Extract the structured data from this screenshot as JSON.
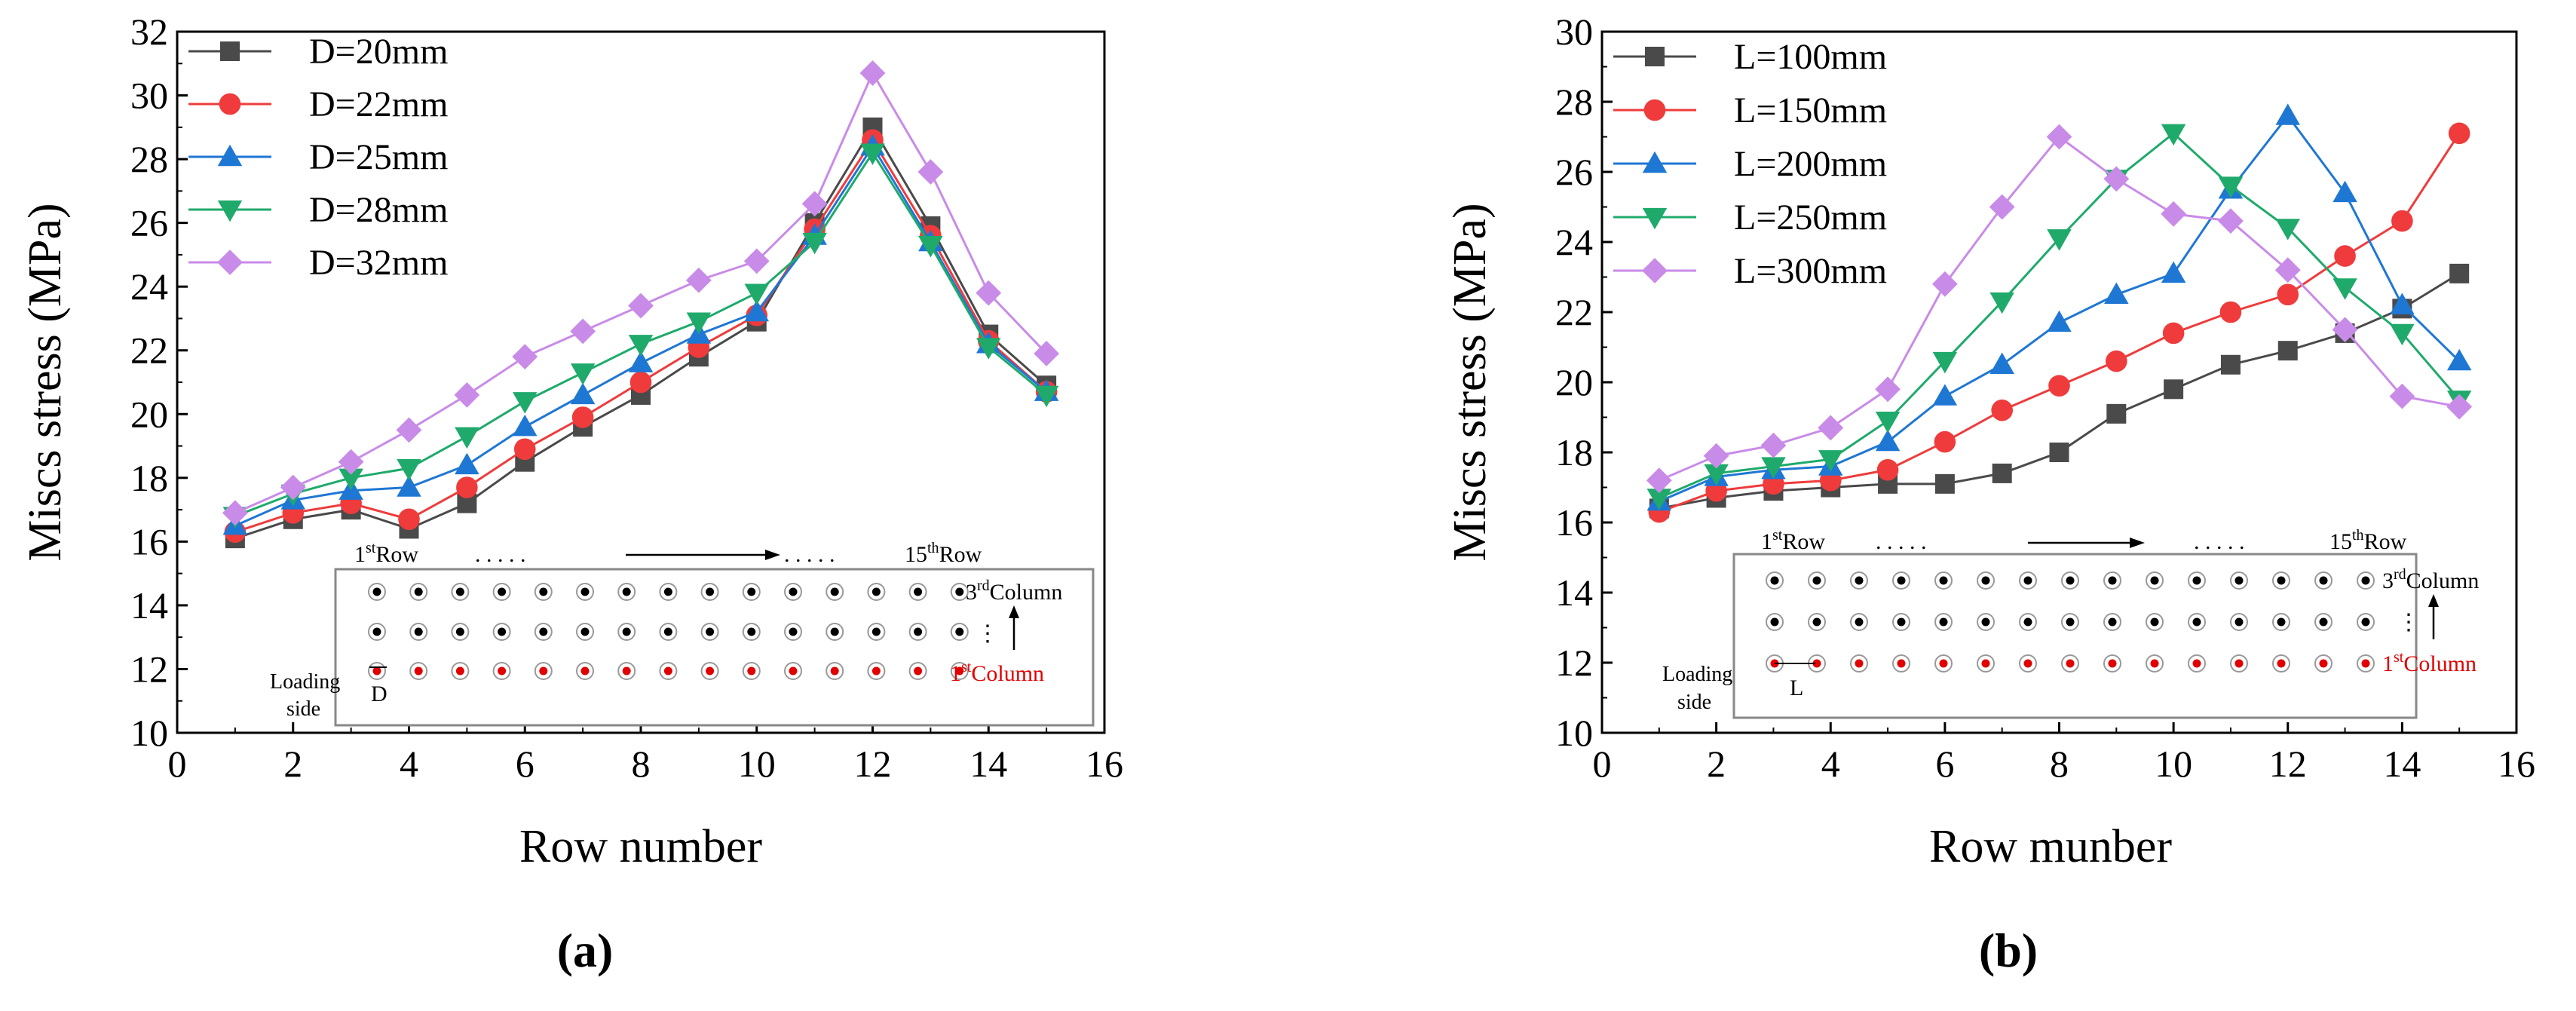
{
  "chart_data": [
    {
      "type": "line",
      "panel_label": "(a)",
      "xlabel": "Row number",
      "ylabel": "Miscs stress (MPa)",
      "xlim": [
        0,
        16
      ],
      "ylim": [
        10,
        32
      ],
      "xticks": [
        0,
        2,
        4,
        6,
        8,
        10,
        12,
        14,
        16
      ],
      "yticks": [
        10,
        12,
        14,
        16,
        18,
        20,
        22,
        24,
        26,
        28,
        30,
        32
      ],
      "x": [
        1,
        2,
        3,
        4,
        5,
        6,
        7,
        8,
        9,
        10,
        11,
        12,
        13,
        14,
        15
      ],
      "legend_position": "top-left",
      "series": [
        {
          "name": "D=20mm",
          "marker": "square",
          "color": "#4a4a4a",
          "values": [
            16.1,
            16.7,
            17.0,
            16.4,
            17.2,
            18.5,
            19.6,
            20.6,
            21.8,
            22.9,
            26.0,
            29.0,
            25.9,
            22.5,
            20.9
          ]
        },
        {
          "name": "D=22mm",
          "marker": "circle",
          "color": "#ef3b3b",
          "values": [
            16.3,
            16.9,
            17.2,
            16.7,
            17.7,
            18.9,
            19.9,
            21.0,
            22.1,
            23.1,
            25.8,
            28.6,
            25.6,
            22.3,
            20.7
          ]
        },
        {
          "name": "D=25mm",
          "marker": "triangle-up",
          "color": "#1f77d4",
          "values": [
            16.5,
            17.3,
            17.6,
            17.7,
            18.4,
            19.6,
            20.6,
            21.6,
            22.5,
            23.2,
            25.6,
            28.4,
            25.4,
            22.2,
            20.7
          ]
        },
        {
          "name": "D=28mm",
          "marker": "triangle-down",
          "color": "#1faa6b",
          "values": [
            16.8,
            17.5,
            18.0,
            18.3,
            19.3,
            20.4,
            21.3,
            22.2,
            22.9,
            23.8,
            25.4,
            28.2,
            25.3,
            22.1,
            20.6
          ]
        },
        {
          "name": "D=32mm",
          "marker": "diamond",
          "color": "#c98be8",
          "values": [
            16.9,
            17.7,
            18.5,
            19.5,
            20.6,
            21.8,
            22.6,
            23.4,
            24.2,
            24.8,
            26.6,
            30.7,
            27.6,
            23.8,
            21.9
          ]
        }
      ],
      "inset": {
        "first_row": "1",
        "first_row_sup": "st",
        "first_row_word": "Row",
        "last_row": "15",
        "last_row_sup": "th",
        "last_row_word": "Row",
        "dots": ". . . . .",
        "third_col": "3",
        "third_col_sup": "rd",
        "third_col_word": "Column",
        "first_col": "1",
        "first_col_sup": "st",
        "first_col_word": "Column",
        "loading_1": "Loading",
        "loading_2": "side",
        "dim_label": "D",
        "red_color": "#e00000"
      }
    },
    {
      "type": "line",
      "panel_label": "(b)",
      "xlabel": "Row munber",
      "ylabel": "Miscs stress (MPa)",
      "xlim": [
        0,
        16
      ],
      "ylim": [
        10,
        30
      ],
      "xticks": [
        0,
        2,
        4,
        6,
        8,
        10,
        12,
        14,
        16
      ],
      "yticks": [
        10,
        12,
        14,
        16,
        18,
        20,
        22,
        24,
        26,
        28,
        30
      ],
      "x": [
        1,
        2,
        3,
        4,
        5,
        6,
        7,
        8,
        9,
        10,
        11,
        12,
        13,
        14,
        15
      ],
      "legend_position": "top-left",
      "series": [
        {
          "name": "L=100mm",
          "marker": "square",
          "color": "#4a4a4a",
          "values": [
            16.4,
            16.7,
            16.9,
            17.0,
            17.1,
            17.1,
            17.4,
            18.0,
            19.1,
            19.8,
            20.5,
            20.9,
            21.4,
            22.1,
            23.1
          ]
        },
        {
          "name": "L=150mm",
          "marker": "circle",
          "color": "#ef3b3b",
          "values": [
            16.3,
            16.9,
            17.1,
            17.2,
            17.5,
            18.3,
            19.2,
            19.9,
            20.6,
            21.4,
            22.0,
            22.5,
            23.6,
            24.6,
            27.1
          ]
        },
        {
          "name": "L=200mm",
          "marker": "triangle-up",
          "color": "#1f77d4",
          "values": [
            16.6,
            17.3,
            17.5,
            17.6,
            18.3,
            19.6,
            20.5,
            21.7,
            22.5,
            23.1,
            25.5,
            27.6,
            25.4,
            22.2,
            20.6
          ]
        },
        {
          "name": "L=250mm",
          "marker": "triangle-down",
          "color": "#1faa6b",
          "values": [
            16.7,
            17.4,
            17.6,
            17.8,
            18.9,
            20.6,
            22.3,
            24.1,
            25.8,
            27.1,
            25.6,
            24.4,
            22.7,
            21.4,
            19.5
          ]
        },
        {
          "name": "L=300mm",
          "marker": "diamond",
          "color": "#c98be8",
          "values": [
            17.2,
            17.9,
            18.2,
            18.7,
            19.8,
            22.8,
            25.0,
            27.0,
            25.8,
            24.8,
            24.6,
            23.2,
            21.5,
            19.6,
            19.3
          ]
        }
      ],
      "inset": {
        "first_row": "1",
        "first_row_sup": "st",
        "first_row_word": "Row",
        "last_row": "15",
        "last_row_sup": "th",
        "last_row_word": "Row",
        "dots": ". . . . .",
        "third_col": "3",
        "third_col_sup": "rd",
        "third_col_word": "Column",
        "first_col": "1",
        "first_col_sup": "st",
        "first_col_word": "Column",
        "loading_1": "Loading",
        "loading_2": "side",
        "dim_label": "L",
        "red_color": "#e00000"
      }
    }
  ]
}
